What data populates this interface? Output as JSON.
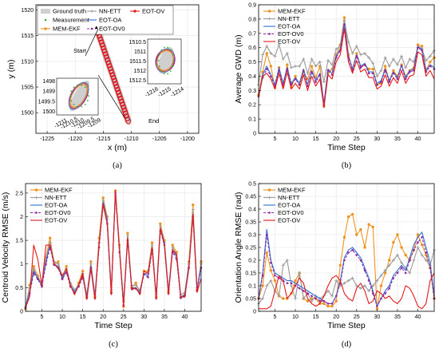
{
  "colors": {
    "mem_ekf": "#f0921f",
    "nn_ett": "#9a9a9a",
    "eot_oa": "#2f6fd6",
    "eot_ov0": "#8e2aa0",
    "eot_ov": "#e41a1c",
    "ground_truth": "#cfcfcf",
    "measurement": "#2db52d"
  },
  "chart_data": [
    {
      "id": "a",
      "type": "scatter",
      "subcaption": "(a)",
      "xlabel": "x (m)",
      "ylabel": "y (m)",
      "xlim": [
        -1227,
        -1198
      ],
      "ylim": [
        1496,
        1521
      ],
      "xticks": [
        -1225,
        -1220,
        -1215,
        -1210,
        -1205,
        -1200
      ],
      "yticks": [
        1500,
        1505,
        1510,
        1515,
        1520
      ],
      "legend": [
        "Ground truth",
        "NN-ETT",
        "EOT-OV",
        "Measurement",
        "EOT-OA",
        "MEM-EKF",
        "EOT-OV0"
      ],
      "annotations": [
        "Start",
        "End"
      ],
      "track": {
        "x": [
          -1216.5,
          -1215.8,
          -1215.0,
          -1214.2,
          -1213.4,
          -1212.7,
          -1212.0,
          -1211.3,
          -1210.6
        ],
        "y": [
          1517.5,
          1515.5,
          1513.0,
          1510.5,
          1508.0,
          1505.5,
          1503.0,
          1500.6,
          1498.5
        ]
      },
      "inset_start": {
        "xticks": [
          "-1216",
          "-1215",
          "-1214"
        ],
        "yticks": [
          "1510.5",
          "1511",
          "1511.5",
          "1512",
          "1512.5"
        ]
      },
      "inset_end": {
        "xticks": [
          "-1211",
          "-1210.5",
          "-1210",
          "-1209.5",
          "-1209"
        ],
        "yticks": [
          "1498",
          "1499",
          "1499.5",
          "1500"
        ]
      }
    },
    {
      "id": "b",
      "type": "line",
      "subcaption": "(b)",
      "xlabel": "Time Step",
      "ylabel": "Average GWD (m)",
      "xlim": [
        1,
        44
      ],
      "ylim": [
        0,
        0.9
      ],
      "xticks": [
        5,
        10,
        15,
        20,
        25,
        30,
        35,
        40
      ],
      "yticks": [
        0,
        0.1,
        0.2,
        0.3,
        0.4,
        0.5,
        0.6,
        0.7,
        0.8,
        0.9
      ],
      "legend_position": "top-left",
      "x": [
        1,
        2,
        3,
        4,
        5,
        6,
        7,
        8,
        9,
        10,
        11,
        12,
        13,
        14,
        15,
        16,
        17,
        18,
        19,
        20,
        21,
        22,
        23,
        24,
        25,
        26,
        27,
        28,
        29,
        30,
        31,
        32,
        33,
        34,
        35,
        36,
        37,
        38,
        39,
        40,
        41,
        42,
        43,
        44
      ],
      "series": [
        {
          "name": "MEM-EKF",
          "color_key": "mem_ekf",
          "marker": "circle",
          "dash": false,
          "values": [
            0.27,
            0.43,
            0.56,
            0.47,
            0.32,
            0.46,
            0.33,
            0.48,
            0.32,
            0.4,
            0.34,
            0.43,
            0.38,
            0.47,
            0.39,
            0.47,
            0.19,
            0.42,
            0.45,
            0.55,
            0.62,
            0.81,
            0.55,
            0.45,
            0.56,
            0.47,
            0.48,
            0.45,
            0.45,
            0.34,
            0.35,
            0.47,
            0.37,
            0.44,
            0.4,
            0.48,
            0.4,
            0.44,
            0.46,
            0.62,
            0.61,
            0.44,
            0.5,
            0.53
          ]
        },
        {
          "name": "NN-ETT",
          "color_key": "nn_ett",
          "marker": "plus",
          "dash": false,
          "values": [
            0.34,
            0.55,
            0.61,
            0.56,
            0.54,
            0.62,
            0.52,
            0.56,
            0.46,
            0.47,
            0.47,
            0.52,
            0.42,
            0.52,
            0.47,
            0.5,
            0.36,
            0.51,
            0.48,
            0.59,
            0.61,
            0.79,
            0.64,
            0.56,
            0.61,
            0.55,
            0.56,
            0.53,
            0.49,
            0.4,
            0.44,
            0.53,
            0.47,
            0.52,
            0.48,
            0.54,
            0.46,
            0.52,
            0.5,
            0.6,
            0.59,
            0.51,
            0.54,
            0.58
          ]
        },
        {
          "name": "EOT-OA",
          "color_key": "eot_oa",
          "marker": "none",
          "dash": false,
          "values": [
            0.26,
            0.41,
            0.47,
            0.41,
            0.34,
            0.46,
            0.35,
            0.46,
            0.35,
            0.39,
            0.35,
            0.45,
            0.34,
            0.44,
            0.37,
            0.42,
            0.21,
            0.45,
            0.42,
            0.54,
            0.59,
            0.77,
            0.54,
            0.45,
            0.55,
            0.47,
            0.49,
            0.43,
            0.43,
            0.35,
            0.37,
            0.45,
            0.37,
            0.43,
            0.39,
            0.48,
            0.39,
            0.44,
            0.45,
            0.61,
            0.59,
            0.44,
            0.48,
            0.46
          ]
        },
        {
          "name": "EOT-OV0",
          "color_key": "eot_ov0",
          "marker": "dot",
          "dash": true,
          "values": [
            0.26,
            0.39,
            0.45,
            0.4,
            0.33,
            0.44,
            0.34,
            0.45,
            0.34,
            0.38,
            0.34,
            0.44,
            0.33,
            0.43,
            0.36,
            0.41,
            0.2,
            0.44,
            0.41,
            0.53,
            0.58,
            0.76,
            0.53,
            0.44,
            0.54,
            0.46,
            0.48,
            0.42,
            0.42,
            0.34,
            0.36,
            0.44,
            0.36,
            0.42,
            0.38,
            0.47,
            0.38,
            0.43,
            0.44,
            0.6,
            0.58,
            0.43,
            0.47,
            0.45
          ]
        },
        {
          "name": "EOT-OV",
          "color_key": "eot_ov",
          "marker": "none",
          "dash": false,
          "values": [
            0.25,
            0.4,
            0.42,
            0.38,
            0.31,
            0.42,
            0.31,
            0.43,
            0.31,
            0.35,
            0.31,
            0.41,
            0.3,
            0.4,
            0.33,
            0.38,
            0.18,
            0.41,
            0.38,
            0.5,
            0.55,
            0.73,
            0.5,
            0.42,
            0.51,
            0.43,
            0.45,
            0.39,
            0.39,
            0.31,
            0.33,
            0.41,
            0.33,
            0.39,
            0.35,
            0.44,
            0.35,
            0.4,
            0.41,
            0.57,
            0.55,
            0.4,
            0.44,
            0.38
          ]
        }
      ]
    },
    {
      "id": "c",
      "type": "line",
      "subcaption": "(c)",
      "xlabel": "Time Step",
      "ylabel": "Centroid Velocity RMSE (m/s)",
      "xlim": [
        1,
        44
      ],
      "ylim": [
        0,
        2.7
      ],
      "xticks": [
        5,
        10,
        15,
        20,
        25,
        30,
        35,
        40
      ],
      "yticks": [
        0,
        0.5,
        1,
        1.5,
        2,
        2.5
      ],
      "legend_position": "top-left",
      "x": [
        1,
        2,
        3,
        4,
        5,
        6,
        7,
        8,
        9,
        10,
        11,
        12,
        13,
        14,
        15,
        16,
        17,
        18,
        19,
        20,
        21,
        22,
        23,
        24,
        25,
        26,
        27,
        28,
        29,
        30,
        31,
        32,
        33,
        34,
        35,
        36,
        37,
        38,
        39,
        40,
        41,
        42,
        43,
        44
      ],
      "series": [
        {
          "name": "MEM-EKF",
          "color_key": "mem_ekf",
          "marker": "circle",
          "dash": false,
          "values": [
            0.05,
            0.55,
            0.95,
            0.75,
            0.55,
            1.15,
            1.55,
            1.0,
            1.05,
            0.7,
            0.95,
            0.55,
            0.4,
            0.6,
            0.85,
            0.3,
            1.05,
            0.3,
            1.55,
            2.4,
            2.0,
            0.4,
            2.55,
            1.4,
            0.1,
            1.65,
            0.5,
            0.6,
            0.4,
            0.85,
            0.85,
            1.45,
            0.3,
            1.85,
            1.5,
            0.4,
            1.4,
            1.25,
            0.3,
            0.35,
            1.05,
            2.25,
            0.45,
            1.05
          ]
        },
        {
          "name": "NN-ETT",
          "color_key": "nn_ett",
          "marker": "plus",
          "dash": false,
          "values": [
            0.1,
            0.5,
            0.9,
            0.7,
            0.6,
            1.1,
            1.45,
            1.05,
            1.0,
            0.75,
            0.9,
            0.6,
            0.45,
            0.55,
            0.8,
            0.35,
            1.0,
            0.35,
            1.45,
            2.35,
            1.95,
            0.45,
            2.45,
            1.35,
            0.2,
            1.6,
            0.55,
            0.55,
            0.45,
            0.8,
            0.8,
            1.4,
            0.35,
            1.8,
            1.45,
            0.45,
            1.35,
            1.2,
            0.35,
            0.4,
            1.0,
            2.15,
            0.5,
            1.0
          ]
        },
        {
          "name": "EOT-OA",
          "color_key": "eot_oa",
          "marker": "none",
          "dash": false,
          "values": [
            0.08,
            0.4,
            0.85,
            0.7,
            0.55,
            1.05,
            1.4,
            1.0,
            0.95,
            0.7,
            0.85,
            0.55,
            0.4,
            0.55,
            0.75,
            0.3,
            0.95,
            0.3,
            1.4,
            2.3,
            1.9,
            0.4,
            2.55,
            1.3,
            0.15,
            1.55,
            0.5,
            0.5,
            0.4,
            0.8,
            0.75,
            1.35,
            0.3,
            1.75,
            1.45,
            0.4,
            1.3,
            1.15,
            0.3,
            0.35,
            0.95,
            2.05,
            0.45,
            0.95
          ]
        },
        {
          "name": "EOT-OV0",
          "color_key": "eot_ov0",
          "marker": "dot",
          "dash": true,
          "values": [
            0.07,
            0.38,
            0.8,
            0.68,
            0.52,
            1.0,
            1.35,
            0.98,
            0.92,
            0.68,
            0.82,
            0.52,
            0.38,
            0.52,
            0.72,
            0.28,
            0.92,
            0.28,
            1.35,
            2.25,
            1.85,
            0.38,
            2.5,
            1.25,
            0.13,
            1.5,
            0.48,
            0.48,
            0.38,
            0.78,
            0.72,
            1.3,
            0.28,
            1.7,
            1.4,
            0.38,
            1.25,
            1.1,
            0.28,
            0.33,
            0.92,
            2.0,
            0.43,
            0.92
          ]
        },
        {
          "name": "EOT-OV",
          "color_key": "eot_ov",
          "marker": "none",
          "dash": false,
          "values": [
            0.08,
            0.3,
            1.4,
            1.1,
            0.55,
            1.4,
            1.4,
            1.0,
            0.9,
            0.75,
            0.9,
            0.55,
            0.35,
            0.55,
            0.8,
            0.25,
            0.9,
            0.25,
            1.4,
            2.25,
            1.85,
            0.35,
            2.55,
            1.3,
            0.1,
            1.55,
            0.45,
            0.5,
            0.35,
            0.85,
            0.8,
            1.35,
            0.25,
            1.75,
            1.4,
            0.35,
            1.3,
            1.2,
            0.3,
            0.3,
            0.9,
            2.05,
            0.4,
            0.7
          ]
        }
      ]
    },
    {
      "id": "d",
      "type": "line",
      "subcaption": "(d)",
      "xlabel": "Time Step",
      "ylabel": "Orientation Angle RMSE (rad)",
      "xlim": [
        1,
        44
      ],
      "ylim": [
        0,
        0.5
      ],
      "xticks": [
        5,
        10,
        15,
        20,
        25,
        30,
        35,
        40
      ],
      "yticks": [
        0,
        0.05,
        0.1,
        0.15,
        0.2,
        0.25,
        0.3,
        0.35,
        0.4,
        0.45,
        0.5
      ],
      "legend_position": "top-left",
      "x": [
        1,
        2,
        3,
        4,
        5,
        6,
        7,
        8,
        9,
        10,
        11,
        12,
        13,
        14,
        15,
        16,
        17,
        18,
        19,
        20,
        21,
        22,
        23,
        24,
        25,
        26,
        27,
        28,
        29,
        30,
        31,
        32,
        33,
        34,
        35,
        36,
        37,
        38,
        39,
        40,
        41,
        42,
        43,
        44
      ],
      "series": [
        {
          "name": "MEM-EKF",
          "color_key": "mem_ekf",
          "marker": "circle",
          "dash": false,
          "values": [
            0.05,
            0.1,
            0.23,
            0.16,
            0.12,
            0.06,
            0.05,
            0.05,
            0.07,
            0.12,
            0.15,
            0.05,
            0.04,
            0.05,
            0.05,
            0.03,
            0.03,
            0.02,
            0.02,
            0.04,
            0.18,
            0.29,
            0.37,
            0.38,
            0.3,
            0.32,
            0.25,
            0.34,
            0.33,
            0.01,
            0.1,
            0.15,
            0.2,
            0.27,
            0.3,
            0.25,
            0.22,
            0.2,
            0.24,
            0.3,
            0.26,
            0.22,
            0.17,
            0.05
          ]
        },
        {
          "name": "NN-ETT",
          "color_key": "nn_ett",
          "marker": "plus",
          "dash": false,
          "values": [
            0.03,
            0.05,
            0.1,
            0.12,
            0.08,
            0.06,
            0.18,
            0.2,
            0.1,
            0.05,
            0.15,
            0.05,
            0.07,
            0.04,
            0.06,
            0.05,
            0.06,
            0.08,
            0.06,
            0.12,
            0.1,
            0.11,
            0.12,
            0.13,
            0.1,
            0.09,
            0.1,
            0.08,
            0.1,
            0.12,
            0.14,
            0.16,
            0.18,
            0.2,
            0.22,
            0.19,
            0.17,
            0.15,
            0.2,
            0.25,
            0.22,
            0.2,
            0.18,
            0.24
          ]
        },
        {
          "name": "EOT-OA",
          "color_key": "eot_oa",
          "marker": "none",
          "dash": false,
          "values": [
            0.05,
            0.15,
            0.32,
            0.2,
            0.15,
            0.14,
            0.13,
            0.12,
            0.12,
            0.11,
            0.1,
            0.09,
            0.08,
            0.07,
            0.06,
            0.05,
            0.04,
            0.03,
            0.03,
            0.06,
            0.12,
            0.21,
            0.24,
            0.25,
            0.23,
            0.21,
            0.17,
            0.13,
            0.08,
            0.02,
            0.05,
            0.08,
            0.1,
            0.14,
            0.16,
            0.18,
            0.16,
            0.21,
            0.26,
            0.29,
            0.31,
            0.25,
            0.19,
            0.06
          ]
        },
        {
          "name": "EOT-OV0",
          "color_key": "eot_ov0",
          "marker": "dot",
          "dash": true,
          "values": [
            0.05,
            0.14,
            0.3,
            0.19,
            0.14,
            0.13,
            0.12,
            0.11,
            0.11,
            0.1,
            0.09,
            0.08,
            0.07,
            0.06,
            0.05,
            0.04,
            0.04,
            0.03,
            0.03,
            0.06,
            0.11,
            0.2,
            0.23,
            0.24,
            0.22,
            0.2,
            0.16,
            0.12,
            0.07,
            0.02,
            0.05,
            0.07,
            0.09,
            0.13,
            0.15,
            0.17,
            0.15,
            0.2,
            0.24,
            0.27,
            0.29,
            0.23,
            0.17,
            0.05
          ]
        },
        {
          "name": "EOT-OV",
          "color_key": "eot_ov",
          "marker": "none",
          "dash": false,
          "values": [
            0.01,
            0.01,
            0.01,
            0.02,
            0.08,
            0.14,
            0.12,
            0.05,
            0.07,
            0.1,
            0.13,
            0.11,
            0.05,
            0.03,
            0.02,
            0.03,
            0.06,
            0.1,
            0.13,
            0.14,
            0.12,
            0.07,
            0.05,
            0.04,
            0.09,
            0.11,
            0.08,
            0.03,
            0.04,
            0.08,
            0.07,
            0.05,
            0.06,
            0.04,
            0.03,
            0.05,
            0.1,
            0.09,
            0.06,
            0.02,
            0.01,
            0.03,
            0.12,
            0.15
          ]
        }
      ]
    }
  ]
}
